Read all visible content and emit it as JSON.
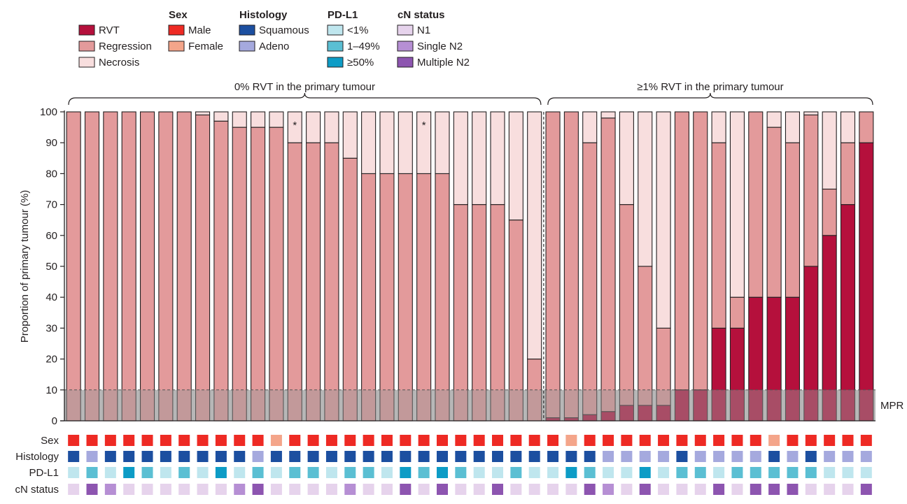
{
  "legend": {
    "segments": [
      {
        "label": "RVT",
        "color": "#b5103c"
      },
      {
        "label": "Regression",
        "color": "#e39a9b"
      },
      {
        "label": "Necrosis",
        "color": "#f8dede"
      }
    ],
    "groups": [
      {
        "title": "Sex",
        "items": [
          {
            "label": "Male",
            "color": "#ee2a24"
          },
          {
            "label": "Female",
            "color": "#f4a58a"
          }
        ]
      },
      {
        "title": "Histology",
        "items": [
          {
            "label": "Squamous",
            "color": "#1c4fa0"
          },
          {
            "label": "Adeno",
            "color": "#a5a9de"
          }
        ]
      },
      {
        "title": "PD-L1",
        "items": [
          {
            "label": "<1%",
            "color": "#bfe6ee"
          },
          {
            "label": "1–49%",
            "color": "#5bbfd3"
          },
          {
            "label": "≥50%",
            "color": "#0d9cc6"
          }
        ]
      },
      {
        "title": "cN status",
        "items": [
          {
            "label": "N1",
            "color": "#e6d3ec"
          },
          {
            "label": "Single N2",
            "color": "#b68fd4"
          },
          {
            "label": "Multiple N2",
            "color": "#8d55b0"
          }
        ]
      }
    ]
  },
  "groups": [
    {
      "label": "0% RVT in the primary tumour",
      "count": 26
    },
    {
      "label": "≥1% RVT in the primary tumour",
      "count": 18
    }
  ],
  "mpr_label": "MPR",
  "mpr_threshold": 10,
  "asterisk": "*",
  "row_labels": [
    "Sex",
    "Histology",
    "PD-L1",
    "cN status"
  ],
  "chart_data": {
    "type": "bar",
    "stacked": true,
    "title": "",
    "xlabel": "",
    "ylabel": "Proportion of primary tumour (%)",
    "ylim": [
      0,
      100
    ],
    "yticks": [
      0,
      10,
      20,
      30,
      40,
      50,
      60,
      70,
      80,
      90,
      100
    ],
    "series": [
      {
        "name": "RVT",
        "values": [
          0,
          0,
          0,
          0,
          0,
          0,
          0,
          0,
          0,
          0,
          0,
          0,
          0,
          0,
          0,
          0,
          0,
          0,
          0,
          0,
          0,
          0,
          0,
          0,
          0,
          0,
          1,
          1,
          2,
          3,
          5,
          5,
          5,
          10,
          10,
          30,
          30,
          40,
          40,
          40,
          50,
          60,
          70,
          90
        ]
      },
      {
        "name": "Regression",
        "values": [
          100,
          100,
          100,
          100,
          100,
          100,
          100,
          99,
          97,
          95,
          95,
          95,
          90,
          90,
          90,
          85,
          80,
          80,
          80,
          80,
          80,
          70,
          70,
          70,
          65,
          20,
          99,
          99,
          88,
          95,
          65,
          45,
          25,
          90,
          90,
          60,
          10,
          60,
          55,
          50,
          49,
          15,
          20,
          10
        ]
      },
      {
        "name": "Necrosis",
        "values": [
          0,
          0,
          0,
          0,
          0,
          0,
          0,
          1,
          3,
          5,
          5,
          5,
          10,
          10,
          10,
          15,
          20,
          20,
          20,
          20,
          20,
          30,
          30,
          30,
          35,
          80,
          0,
          0,
          10,
          2,
          30,
          50,
          70,
          0,
          0,
          10,
          60,
          0,
          5,
          10,
          1,
          25,
          10,
          0
        ]
      }
    ],
    "asterisk_bars": [
      13,
      20
    ],
    "annotations": {
      "sex": [
        "M",
        "M",
        "M",
        "M",
        "M",
        "M",
        "M",
        "M",
        "M",
        "M",
        "M",
        "F",
        "M",
        "M",
        "M",
        "M",
        "M",
        "M",
        "M",
        "M",
        "M",
        "M",
        "M",
        "M",
        "M",
        "M",
        "M",
        "F",
        "M",
        "M",
        "M",
        "M",
        "M",
        "M",
        "M",
        "M",
        "M",
        "M",
        "F",
        "M",
        "M",
        "M",
        "M",
        "M"
      ],
      "histology": [
        "S",
        "A",
        "S",
        "S",
        "S",
        "S",
        "S",
        "S",
        "S",
        "S",
        "A",
        "S",
        "S",
        "S",
        "S",
        "S",
        "S",
        "S",
        "S",
        "S",
        "S",
        "S",
        "S",
        "S",
        "S",
        "S",
        "S",
        "S",
        "S",
        "A",
        "A",
        "A",
        "A",
        "S",
        "A",
        "A",
        "A",
        "A",
        "S",
        "A",
        "S",
        "A",
        "A",
        "A"
      ],
      "pdl1": [
        "L",
        "M",
        "L",
        "H",
        "M",
        "L",
        "M",
        "L",
        "H",
        "L",
        "M",
        "L",
        "M",
        "M",
        "L",
        "M",
        "M",
        "L",
        "H",
        "M",
        "H",
        "M",
        "L",
        "L",
        "M",
        "L",
        "L",
        "H",
        "M",
        "L",
        "L",
        "H",
        "L",
        "M",
        "M",
        "L",
        "M",
        "M",
        "M",
        "M",
        "M",
        "L",
        "L",
        "L"
      ],
      "cn": [
        "N",
        "X",
        "S",
        "N",
        "N",
        "N",
        "N",
        "N",
        "N",
        "S",
        "X",
        "N",
        "N",
        "N",
        "N",
        "S",
        "N",
        "N",
        "X",
        "N",
        "X",
        "N",
        "N",
        "X",
        "N",
        "N",
        "N",
        "N",
        "X",
        "S",
        "N",
        "X",
        "N",
        "N",
        "N",
        "X",
        "N",
        "X",
        "X",
        "X",
        "N",
        "N",
        "N",
        "X"
      ]
    }
  }
}
